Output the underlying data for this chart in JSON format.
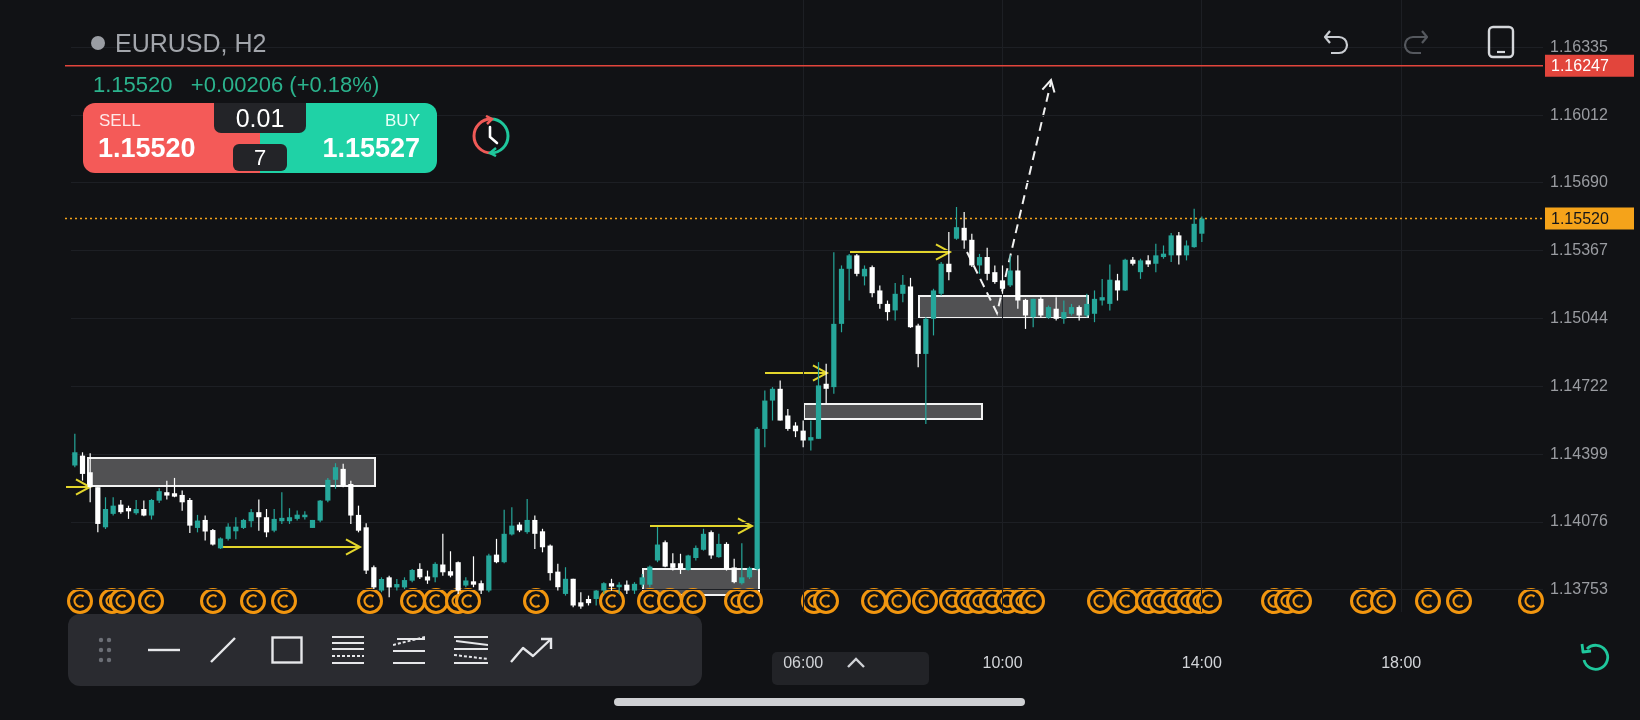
{
  "chart_data": {
    "type": "candlestick",
    "title": "EURUSD, H2",
    "subtitle": "1.15520   +0.00206 (+0.18%)",
    "categories": [
      null,
      null,
      null,
      null,
      null,
      null,
      null,
      null,
      null,
      null,
      null,
      null,
      null,
      null,
      null,
      null,
      null,
      null,
      null,
      null,
      null,
      null,
      null,
      null,
      null,
      null,
      null,
      null,
      null,
      null,
      null,
      null,
      null,
      null,
      null,
      null,
      null,
      null,
      null,
      null,
      null,
      null,
      null,
      null,
      null,
      null,
      null,
      null,
      null,
      null,
      null,
      null,
      null,
      null,
      null,
      null,
      null,
      null,
      null,
      null,
      null,
      null,
      null,
      null,
      null,
      null,
      null,
      null,
      null,
      null,
      null,
      null,
      null,
      null,
      null,
      null,
      null,
      null,
      null,
      null,
      null,
      null,
      null,
      null,
      null,
      null,
      null,
      null,
      null,
      null,
      null,
      null,
      null,
      null,
      null,
      "06:00",
      null,
      null,
      null,
      null,
      null,
      null,
      null,
      null,
      null,
      null,
      null,
      null,
      null,
      null,
      null,
      null,
      null,
      null,
      null,
      null,
      null,
      null,
      null,
      null,
      null,
      "10:00",
      null,
      null,
      null,
      null,
      null,
      null,
      null,
      null,
      null,
      null,
      null,
      null,
      null,
      null,
      null,
      null,
      null,
      null,
      null,
      null,
      null,
      null,
      null,
      null,
      null,
      "14:00",
      null,
      null,
      null,
      null,
      null,
      null,
      null,
      null,
      null,
      null,
      null,
      null,
      null,
      null,
      null,
      null,
      null,
      null,
      null,
      null,
      null,
      null,
      null,
      null,
      null,
      "18:00",
      null,
      null,
      null,
      null,
      null,
      null,
      null,
      null,
      null,
      null,
      null,
      null,
      null,
      null,
      null,
      null,
      null,
      null
    ],
    "ohlc": [
      [
        1.14345,
        1.14496,
        1.14337,
        1.14408
      ],
      [
        1.14392,
        1.14408,
        1.14273,
        1.14305
      ],
      [
        1.14313,
        1.14403,
        1.1417,
        1.14242
      ],
      [
        1.14242,
        1.14242,
        1.14027,
        1.14067
      ],
      [
        1.14051,
        1.14194,
        1.14043,
        1.14138
      ],
      [
        1.14115,
        1.14194,
        1.14107,
        1.14154
      ],
      [
        1.14159,
        1.14181,
        1.14115,
        1.14123
      ],
      [
        1.14143,
        1.14154,
        1.14091,
        1.14127
      ],
      [
        1.14118,
        1.14181,
        1.14111,
        1.14138
      ],
      [
        1.14138,
        1.14178,
        1.14104,
        1.14107
      ],
      [
        1.14107,
        1.14186,
        1.14088,
        1.14181
      ],
      [
        1.14178,
        1.14237,
        1.14167,
        1.14223
      ],
      [
        1.14218,
        1.14273,
        1.14183,
        1.14202
      ],
      [
        1.14213,
        1.14286,
        1.14194,
        1.14197
      ],
      [
        1.14205,
        1.14226,
        1.1413,
        1.1417
      ],
      [
        1.14181,
        1.14191,
        1.14024,
        1.14059
      ],
      [
        1.14048,
        1.1411,
        1.14027,
        1.14083
      ],
      [
        1.14086,
        1.14107,
        1.13988,
        1.14031
      ],
      [
        1.14038,
        1.14043,
        1.13964,
        1.13969
      ],
      [
        1.13951,
        1.14003,
        1.13948,
        1.13998
      ],
      [
        1.13996,
        1.1407,
        1.13988,
        1.14054
      ],
      [
        1.14032,
        1.14099,
        1.13994,
        1.14054
      ],
      [
        1.14048,
        1.14091,
        1.14043,
        1.14086
      ],
      [
        1.1408,
        1.14138,
        1.14051,
        1.14123
      ],
      [
        1.14123,
        1.14183,
        1.14035,
        1.14099
      ],
      [
        1.14099,
        1.14138,
        1.14004,
        1.14027
      ],
      [
        1.14035,
        1.14138,
        1.14027,
        1.14091
      ],
      [
        1.1408,
        1.14218,
        1.14067,
        1.14096
      ],
      [
        1.1408,
        1.14142,
        1.14067,
        1.14099
      ],
      [
        1.14091,
        1.14131,
        1.14083,
        1.14111
      ],
      [
        1.14099,
        1.14127,
        1.14088,
        1.14111
      ],
      [
        1.14048,
        1.14086,
        1.14048,
        1.14086
      ],
      [
        1.14083,
        1.14181,
        1.14075,
        1.14178
      ],
      [
        1.14178,
        1.14286,
        1.1417,
        1.14277
      ],
      [
        1.14277,
        1.14356,
        1.14234,
        1.14337
      ],
      [
        1.14329,
        1.14353,
        1.14242,
        1.1425
      ],
      [
        1.14257,
        1.14273,
        1.14067,
        1.14107
      ],
      [
        1.1411,
        1.14154,
        1.14027,
        1.14035
      ],
      [
        1.14051,
        1.1407,
        1.13829,
        1.13845
      ],
      [
        1.13861,
        1.13869,
        1.13757,
        1.13765
      ],
      [
        1.1375,
        1.13813,
        1.13742,
        1.13805
      ],
      [
        1.13813,
        1.13821,
        1.13718,
        1.13765
      ],
      [
        1.13765,
        1.13805,
        1.1375,
        1.13781
      ],
      [
        1.13765,
        1.13813,
        1.13757,
        1.138
      ],
      [
        1.13797,
        1.13853,
        1.13789,
        1.13848
      ],
      [
        1.13853,
        1.1388,
        1.13805,
        1.13813
      ],
      [
        1.13817,
        1.13845,
        1.13782,
        1.13798
      ],
      [
        1.13813,
        1.13885,
        1.1379,
        1.13877
      ],
      [
        1.13874,
        1.1402,
        1.13821,
        1.13837
      ],
      [
        1.13842,
        1.13937,
        1.13813,
        1.13821
      ],
      [
        1.13885,
        1.13888,
        1.13734,
        1.1375
      ],
      [
        1.13774,
        1.13813,
        1.13766,
        1.13798
      ],
      [
        1.13794,
        1.13913,
        1.13766,
        1.13778
      ],
      [
        1.13785,
        1.13798,
        1.13734,
        1.1375
      ],
      [
        1.1375,
        1.13925,
        1.13742,
        1.13917
      ],
      [
        1.13921,
        1.13996,
        1.1388,
        1.13885
      ],
      [
        1.13885,
        1.14134,
        1.1388,
        1.1402
      ],
      [
        1.14017,
        1.14147,
        1.14012,
        1.14059
      ],
      [
        1.14064,
        1.14075,
        1.14028,
        1.14036
      ],
      [
        1.14028,
        1.14186,
        1.1402,
        1.14086
      ],
      [
        1.14086,
        1.14107,
        1.13948,
        1.1402
      ],
      [
        1.14032,
        1.14044,
        1.13932,
        1.13956
      ],
      [
        1.13964,
        1.13969,
        1.13798,
        1.13833
      ],
      [
        1.1384,
        1.13877,
        1.1375,
        1.13766
      ],
      [
        1.13734,
        1.13861,
        1.13726,
        1.13806
      ],
      [
        1.13806,
        1.13806,
        1.13671,
        1.13679
      ],
      [
        1.13694,
        1.13742,
        1.13663,
        1.13674
      ],
      [
        1.1371,
        1.13726,
        1.13679,
        1.1369
      ],
      [
        1.1371,
        1.13753,
        1.13679,
        1.1375
      ],
      [
        1.1375,
        1.1379,
        1.13734,
        1.13785
      ],
      [
        1.13785,
        1.13806,
        1.1375,
        1.13769
      ],
      [
        1.13766,
        1.1379,
        1.13734,
        1.13778
      ],
      [
        1.13778,
        1.13798,
        1.13734,
        1.1375
      ],
      [
        1.1375,
        1.1379,
        1.13734,
        1.13782
      ],
      [
        1.13778,
        1.13829,
        1.13766,
        1.13813
      ],
      [
        1.13778,
        1.13869,
        1.13766,
        1.13864
      ],
      [
        1.13893,
        1.14052,
        1.13885,
        1.13969
      ],
      [
        1.1398,
        1.13988,
        1.13861,
        1.13864
      ],
      [
        1.1388,
        1.13928,
        1.13845,
        1.13858
      ],
      [
        1.1388,
        1.13925,
        1.13829,
        1.13853
      ],
      [
        1.13848,
        1.13921,
        1.13845,
        1.13917
      ],
      [
        1.13905,
        1.13964,
        1.13893,
        1.13953
      ],
      [
        1.13944,
        1.14044,
        1.1394,
        1.1402
      ],
      [
        1.14028,
        1.14036,
        1.13901,
        1.13917
      ],
      [
        1.13909,
        1.1402,
        1.13906,
        1.13972
      ],
      [
        1.13972,
        1.1398,
        1.13845,
        1.13853
      ],
      [
        1.1386,
        1.13901,
        1.13785,
        1.1379
      ],
      [
        1.13785,
        1.13975,
        1.13779,
        1.13813
      ],
      [
        1.13813,
        1.13864,
        1.13805,
        1.13858
      ],
      [
        1.13853,
        1.14528,
        1.13845,
        1.1452
      ],
      [
        1.14519,
        1.14702,
        1.14432,
        1.14654
      ],
      [
        1.14654,
        1.14718,
        1.14559,
        1.1471
      ],
      [
        1.1471,
        1.14749,
        1.14559,
        1.14559
      ],
      [
        1.14583,
        1.14614,
        1.14511,
        1.14519
      ],
      [
        1.14535,
        1.14551,
        1.1448,
        1.14508
      ],
      [
        1.14511,
        1.14559,
        1.14432,
        1.14464
      ],
      [
        1.14464,
        1.14559,
        1.14416,
        1.1448
      ],
      [
        1.14472,
        1.14837,
        1.14472,
        1.14726
      ],
      [
        1.14734,
        1.14829,
        1.14638,
        1.1471
      ],
      [
        1.14718,
        1.1536,
        1.14686,
        1.15019
      ],
      [
        1.15019,
        1.15297,
        1.14979,
        1.15281
      ],
      [
        1.15281,
        1.15352,
        1.1513,
        1.15345
      ],
      [
        1.15345,
        1.15352,
        1.15245,
        1.15257
      ],
      [
        1.15245,
        1.15297,
        1.15202,
        1.15281
      ],
      [
        1.15289,
        1.15297,
        1.15146,
        1.15165
      ],
      [
        1.15178,
        1.15202,
        1.15091,
        1.15114
      ],
      [
        1.15114,
        1.1513,
        1.15035,
        1.15075
      ],
      [
        1.15083,
        1.15213,
        1.15035,
        1.15162
      ],
      [
        1.15162,
        1.15252,
        1.15122,
        1.15205
      ],
      [
        1.15197,
        1.15238,
        1.15,
        1.15003
      ],
      [
        1.15011,
        1.15019,
        1.14813,
        1.14876
      ],
      [
        1.14876,
        1.15051,
        1.14543,
        1.15043
      ],
      [
        1.15043,
        1.15186,
        1.14964,
        1.15178
      ],
      [
        1.15162,
        1.15313,
        1.15154,
        1.15305
      ],
      [
        1.15305,
        1.15456,
        1.15226,
        1.15265
      ],
      [
        1.15424,
        1.15575,
        1.15419,
        1.15479
      ],
      [
        1.15476,
        1.15551,
        1.15376,
        1.15416
      ],
      [
        1.15419,
        1.15448,
        1.15289,
        1.15297
      ],
      [
        1.15297,
        1.15352,
        1.15257,
        1.15337
      ],
      [
        1.15337,
        1.15381,
        1.15226,
        1.15257
      ],
      [
        1.15265,
        1.15297,
        1.1521,
        1.15218
      ],
      [
        1.15226,
        1.15297,
        1.15162,
        1.15186
      ],
      [
        1.15202,
        1.15345,
        1.15194,
        1.15273
      ],
      [
        1.15273,
        1.15345,
        1.15091,
        1.1513
      ],
      [
        1.15133,
        1.15138,
        1.14995,
        1.15059
      ],
      [
        1.15051,
        1.15138,
        1.15003,
        1.15138
      ],
      [
        1.15138,
        1.15146,
        1.15051,
        1.15059
      ],
      [
        1.15048,
        1.15106,
        1.15043,
        1.15099
      ],
      [
        1.15091,
        1.15146,
        1.15035,
        1.15043
      ],
      [
        1.15043,
        1.1513,
        1.15019,
        1.15075
      ],
      [
        1.15067,
        1.15114,
        1.15059,
        1.15099
      ],
      [
        1.15099,
        1.15106,
        1.15035,
        1.15059
      ],
      [
        1.15059,
        1.15162,
        1.15051,
        1.15114
      ],
      [
        1.15067,
        1.15178,
        1.15027,
        1.15138
      ],
      [
        1.1513,
        1.15233,
        1.15106,
        1.15146
      ],
      [
        1.15114,
        1.15302,
        1.15083,
        1.15229
      ],
      [
        1.15226,
        1.15257,
        1.1513,
        1.15178
      ],
      [
        1.15178,
        1.15329,
        1.15175,
        1.15324
      ],
      [
        1.15324,
        1.15337,
        1.15297,
        1.15305
      ],
      [
        1.15265,
        1.15329,
        1.15233,
        1.15321
      ],
      [
        1.15321,
        1.15345,
        1.15289,
        1.15302
      ],
      [
        1.15305,
        1.154,
        1.15265,
        1.15345
      ],
      [
        1.15337,
        1.15392,
        1.15329,
        1.15353
      ],
      [
        1.15345,
        1.15451,
        1.15313,
        1.1544
      ],
      [
        1.1544,
        1.15456,
        1.15302,
        1.15345
      ],
      [
        1.15345,
        1.15416,
        1.15321,
        1.15392
      ],
      [
        1.15384,
        1.15567,
        1.15381,
        1.15495
      ],
      [
        1.15448,
        1.1553,
        1.15408,
        1.1552
      ],
      null,
      null,
      null,
      null,
      null,
      null,
      null,
      null,
      null,
      null,
      null,
      null,
      null,
      null,
      null,
      null,
      null,
      null,
      null,
      null,
      null,
      null,
      null,
      null,
      null,
      null,
      null,
      null,
      null,
      null,
      null,
      null,
      null,
      null,
      null,
      null,
      null,
      null,
      null,
      null,
      null,
      null,
      null,
      null
    ],
    "colors": [
      "#26a69a",
      "#ffffff",
      "#ffffff",
      "#ffffff",
      "#26a69a",
      "#26a69a",
      "#ffffff",
      "#ffffff",
      "#26a69a",
      "#ffffff",
      "#26a69a",
      "#26a69a",
      "#ffffff",
      "#ffffff",
      "#ffffff",
      "#ffffff",
      "#26a69a",
      "#ffffff",
      "#ffffff",
      "#26a69a",
      "#26a69a",
      "#26a69a",
      "#26a69a",
      "#26a69a",
      "#ffffff",
      "#ffffff",
      "#26a69a",
      "#26a69a",
      "#26a69a",
      "#26a69a",
      "#26a69a",
      "#26a69a",
      "#26a69a",
      "#26a69a",
      "#26a69a",
      "#ffffff",
      "#ffffff",
      "#ffffff",
      "#ffffff",
      "#ffffff",
      "#26a69a",
      "#ffffff",
      "#26a69a",
      "#26a69a",
      "#26a69a",
      "#ffffff",
      "#ffffff",
      "#26a69a",
      "#ffffff",
      "#ffffff",
      "#ffffff",
      "#26a69a",
      "#ffffff",
      "#ffffff",
      "#26a69a",
      "#ffffff",
      "#26a69a",
      "#26a69a",
      "#ffffff",
      "#26a69a",
      "#ffffff",
      "#ffffff",
      "#ffffff",
      "#ffffff",
      "#26a69a",
      "#ffffff",
      "#ffffff",
      "#ffffff",
      "#26a69a",
      "#26a69a",
      "#ffffff",
      "#26a69a",
      "#ffffff",
      "#26a69a",
      "#26a69a",
      "#26a69a",
      "#26a69a",
      "#ffffff",
      "#ffffff",
      "#ffffff",
      "#26a69a",
      "#26a69a",
      "#26a69a",
      "#ffffff",
      "#26a69a",
      "#ffffff",
      "#ffffff",
      "#26a69a",
      "#26a69a",
      "#26a69a",
      "#26a69a",
      "#26a69a",
      "#ffffff",
      "#ffffff",
      "#ffffff",
      "#ffffff",
      "#26a69a",
      "#26a69a",
      "#ffffff",
      "#26a69a",
      "#26a69a",
      "#26a69a",
      "#ffffff",
      "#26a69a",
      "#ffffff",
      "#ffffff",
      "#ffffff",
      "#26a69a",
      "#26a69a",
      "#ffffff",
      "#ffffff",
      "#26a69a",
      "#26a69a",
      "#26a69a",
      "#ffffff",
      "#26a69a",
      "#ffffff",
      "#ffffff",
      "#26a69a",
      "#ffffff",
      "#ffffff",
      "#ffffff",
      "#26a69a",
      "#ffffff",
      "#ffffff",
      "#26a69a",
      "#ffffff",
      "#26a69a",
      "#ffffff",
      "#26a69a",
      "#26a69a",
      "#ffffff",
      "#26a69a",
      "#26a69a",
      "#26a69a",
      "#26a69a",
      "#ffffff",
      "#26a69a",
      "#ffffff",
      "#26a69a",
      "#ffffff",
      "#26a69a",
      "#26a69a",
      "#26a69a",
      "#ffffff",
      "#26a69a",
      "#26a69a",
      "#26a69a",
      null,
      null,
      null,
      null,
      null,
      null,
      null,
      null,
      null,
      null,
      null,
      null,
      null,
      null,
      null,
      null,
      null,
      null,
      null,
      null,
      null,
      null,
      null,
      null,
      null,
      null,
      null,
      null,
      null,
      null,
      null,
      null,
      null,
      null,
      null,
      null,
      null,
      null,
      null,
      null,
      null,
      null,
      null,
      null
    ],
    "ylim": [
      1.13648,
      1.1656
    ],
    "yticks": [
      1.13753,
      1.14076,
      1.14399,
      1.14722,
      1.15044,
      1.15367,
      {
        "value": 1.1569,
        "label": "1.15690"
      },
      1.16012,
      1.16335
    ],
    "grid": true,
    "ref_lines": [
      {
        "axis": "y",
        "value": 1.16247,
        "label": "1.16247",
        "color": "#e2453c",
        "line_style": "solid"
      },
      {
        "axis": "y",
        "value": 1.1552,
        "label": "1.15520",
        "color": "#f5a31a",
        "line_style": "dotted"
      }
    ],
    "annotations": [
      "SELL",
      "1.15520",
      "0.01",
      "7",
      "BUY",
      "1.15527"
    ]
  }
}
